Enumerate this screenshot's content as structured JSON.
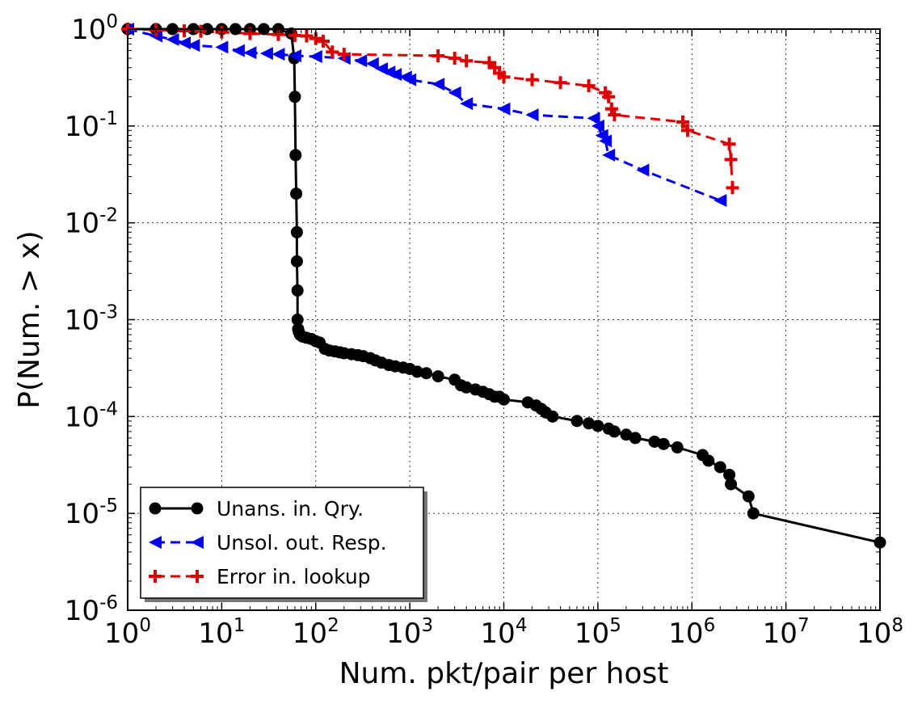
{
  "chart_data": {
    "type": "line",
    "title": "",
    "xlabel": "Num. pkt/pair per host",
    "ylabel": "P(Num. > x)",
    "xscale": "log",
    "yscale": "log",
    "xlim": [
      1,
      100000000
    ],
    "ylim": [
      1e-06,
      1
    ],
    "grid": true,
    "legend_position": "lower-left",
    "x_ticks": [
      {
        "value": 1,
        "base": "10",
        "exp": "0"
      },
      {
        "value": 10,
        "base": "10",
        "exp": "1"
      },
      {
        "value": 100,
        "base": "10",
        "exp": "2"
      },
      {
        "value": 1000,
        "base": "10",
        "exp": "3"
      },
      {
        "value": 10000,
        "base": "10",
        "exp": "4"
      },
      {
        "value": 100000,
        "base": "10",
        "exp": "5"
      },
      {
        "value": 1000000,
        "base": "10",
        "exp": "6"
      },
      {
        "value": 10000000,
        "base": "10",
        "exp": "7"
      },
      {
        "value": 100000000,
        "base": "10",
        "exp": "8"
      }
    ],
    "y_ticks": [
      {
        "value": 1,
        "base": "10",
        "exp": "0"
      },
      {
        "value": 0.1,
        "base": "10",
        "exp": "-1"
      },
      {
        "value": 0.01,
        "base": "10",
        "exp": "-2"
      },
      {
        "value": 0.001,
        "base": "10",
        "exp": "-3"
      },
      {
        "value": 0.0001,
        "base": "10",
        "exp": "-4"
      },
      {
        "value": 1e-05,
        "base": "10",
        "exp": "-5"
      },
      {
        "value": 1e-06,
        "base": "10",
        "exp": "-6"
      }
    ],
    "series": [
      {
        "name": "Unans. in. Qry.",
        "color": "#000000",
        "line": "solid",
        "marker": "circle",
        "x": [
          1,
          2,
          3,
          5,
          7,
          10,
          14,
          20,
          28,
          40,
          55,
          59,
          60,
          61,
          62,
          63,
          63,
          64,
          64,
          65,
          66,
          68,
          72,
          80,
          90,
          100,
          110,
          125,
          140,
          160,
          180,
          200,
          240,
          280,
          320,
          380,
          430,
          500,
          600,
          700,
          850,
          1000,
          1200,
          1500,
          2000,
          3000,
          3500,
          4000,
          5000,
          6000,
          7000,
          8000,
          9000,
          10000,
          18000,
          22000,
          25000,
          28000,
          33000,
          60000,
          80000,
          100000,
          130000,
          150000,
          200000,
          250000,
          400000,
          500000,
          700000,
          1300000,
          1500000,
          2000000,
          2500000,
          2600000,
          4000000,
          4500000,
          100000000
        ],
        "y": [
          1,
          1,
          1,
          1,
          1,
          1,
          1,
          1,
          1,
          1,
          0.9,
          0.5,
          0.2,
          0.05,
          0.02,
          0.008,
          0.004,
          0.002,
          0.001,
          0.0008,
          0.00075,
          0.0007,
          0.00067,
          0.00065,
          0.00063,
          0.0006,
          0.00058,
          0.0005,
          0.00048,
          0.00047,
          0.00046,
          0.00045,
          0.00044,
          0.00043,
          0.00042,
          0.0004,
          0.00038,
          0.00036,
          0.00034,
          0.00033,
          0.00032,
          0.00031,
          0.00029,
          0.00028,
          0.00026,
          0.00024,
          0.00021,
          0.0002,
          0.00019,
          0.00018,
          0.00017,
          0.00016,
          0.00016,
          0.00015,
          0.00014,
          0.00013,
          0.00012,
          0.00011,
          0.0001,
          9e-05,
          8.5e-05,
          8e-05,
          7.5e-05,
          7e-05,
          6.5e-05,
          6e-05,
          5.5e-05,
          5.2e-05,
          4.8e-05,
          4e-05,
          3.5e-05,
          3e-05,
          2.5e-05,
          2e-05,
          1.5e-05,
          1e-05,
          5e-06
        ]
      },
      {
        "name": "Unsol. out. Resp.",
        "color": "#0000ee",
        "line": "dashed",
        "marker": "triangle-left",
        "x": [
          1,
          2,
          3,
          4,
          5,
          10,
          15,
          20,
          30,
          40,
          60,
          100,
          200,
          300,
          400,
          500,
          600,
          700,
          900,
          1000,
          2000,
          3000,
          4000,
          10000,
          20000,
          90000,
          100000,
          110000,
          120000,
          130000,
          300000,
          2000000
        ],
        "y": [
          1,
          0.85,
          0.78,
          0.72,
          0.68,
          0.65,
          0.6,
          0.57,
          0.56,
          0.55,
          0.53,
          0.52,
          0.5,
          0.47,
          0.44,
          0.39,
          0.36,
          0.34,
          0.32,
          0.3,
          0.27,
          0.22,
          0.17,
          0.15,
          0.13,
          0.12,
          0.1,
          0.08,
          0.07,
          0.05,
          0.035,
          0.017
        ]
      },
      {
        "name": "Error in. lookup",
        "color": "#dd0000",
        "line": "dashed",
        "marker": "plus",
        "x": [
          1,
          2,
          4,
          6,
          10,
          20,
          40,
          60,
          80,
          100,
          120,
          150,
          200,
          2000,
          3000,
          4000,
          7000,
          8000,
          9000,
          10000,
          20000,
          40000,
          80000,
          120000,
          130000,
          140000,
          150000,
          800000,
          900000,
          2500000,
          2600000,
          2700000
        ],
        "y": [
          1,
          0.98,
          0.96,
          0.95,
          0.93,
          0.9,
          0.88,
          0.86,
          0.85,
          0.8,
          0.75,
          0.58,
          0.55,
          0.53,
          0.5,
          0.47,
          0.45,
          0.4,
          0.35,
          0.32,
          0.3,
          0.28,
          0.26,
          0.22,
          0.2,
          0.15,
          0.13,
          0.11,
          0.09,
          0.065,
          0.045,
          0.023
        ]
      }
    ]
  }
}
